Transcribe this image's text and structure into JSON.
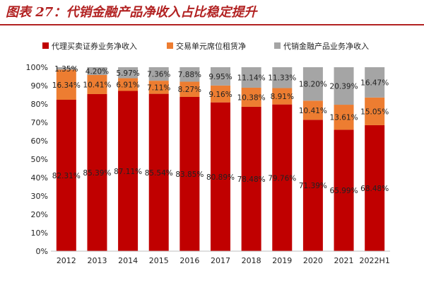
{
  "title": "图表 27：代销金融产品净收入占比稳定提升",
  "chart_data": {
    "type": "bar",
    "stacked": true,
    "categories": [
      "2012",
      "2013",
      "2014",
      "2015",
      "2016",
      "2017",
      "2018",
      "2019",
      "2020",
      "2021",
      "2022H1"
    ],
    "series": [
      {
        "name": "代理买卖证券业务净收入",
        "color": "#c00000",
        "values": [
          82.31,
          85.39,
          87.11,
          85.54,
          83.85,
          80.89,
          78.48,
          79.76,
          71.39,
          65.99,
          68.48
        ],
        "labels": [
          "82.31%",
          "85.39%",
          "87.11%",
          "85.54%",
          "83.85%",
          "80.89%",
          "78.48%",
          "79.76%",
          "71.39%",
          "65.99%",
          "68.48%"
        ]
      },
      {
        "name": "交易单元席位租赁净",
        "color": "#ed7d31",
        "values": [
          16.34,
          10.41,
          6.91,
          7.11,
          8.27,
          9.16,
          10.38,
          8.91,
          10.41,
          13.61,
          15.05
        ],
        "labels": [
          "16.34%",
          "10.41%",
          "6.91%",
          "7.11%",
          "8.27%",
          "9.16%",
          "10.38%",
          "8.91%",
          "10.41%",
          "13.61%",
          "15.05%"
        ]
      },
      {
        "name": "代销金融产品业务净收入",
        "color": "#a5a5a5",
        "values": [
          1.35,
          4.2,
          5.97,
          7.36,
          7.88,
          9.95,
          11.14,
          11.33,
          18.2,
          20.39,
          16.47
        ],
        "labels": [
          "1.35%",
          "4.20%",
          "5.97%",
          "7.36%",
          "7.88%",
          "9.95%",
          "11.14%",
          "11.33%",
          "18.20%",
          "20.39%",
          "16.47%"
        ]
      }
    ],
    "yticks": [
      "0%",
      "10%",
      "20%",
      "30%",
      "40%",
      "50%",
      "60%",
      "70%",
      "80%",
      "90%",
      "100%"
    ],
    "ylim": [
      0,
      100
    ],
    "legend_position": "top",
    "grid": false
  }
}
